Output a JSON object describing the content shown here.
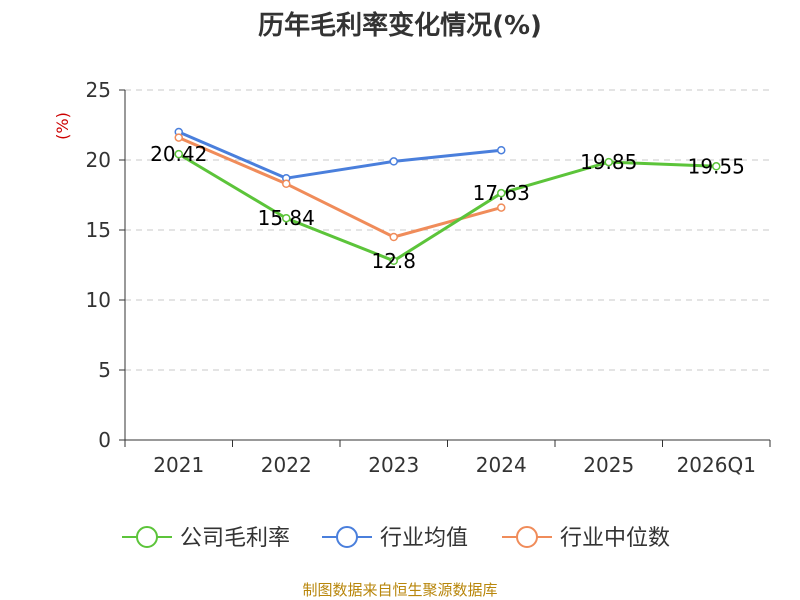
{
  "chart_data": {
    "type": "line",
    "title": "历年毛利率变化情况(%)",
    "ylabel": "(%)",
    "xlabel": "",
    "ylim": [
      0,
      25
    ],
    "yticks": [
      0,
      5,
      10,
      15,
      20,
      25
    ],
    "grid": true,
    "legend_position": "bottom",
    "categories": [
      "2021",
      "2022",
      "2023",
      "2024",
      "2025",
      "2026Q1"
    ],
    "series": [
      {
        "name": "公司毛利率",
        "color": "#5cc43a",
        "values": [
          20.42,
          15.84,
          12.8,
          17.63,
          19.85,
          19.55
        ],
        "labels": [
          "20.42",
          "15.84",
          "12.8",
          "17.63",
          "19.85",
          "19.55"
        ]
      },
      {
        "name": "行业均值",
        "color": "#4a7fdc",
        "values": [
          22.0,
          18.7,
          19.9,
          20.7,
          null,
          null
        ]
      },
      {
        "name": "行业中位数",
        "color": "#f08c5a",
        "values": [
          21.6,
          18.3,
          14.5,
          16.6,
          null,
          null
        ]
      }
    ]
  },
  "source": "制图数据来自恒生聚源数据库"
}
